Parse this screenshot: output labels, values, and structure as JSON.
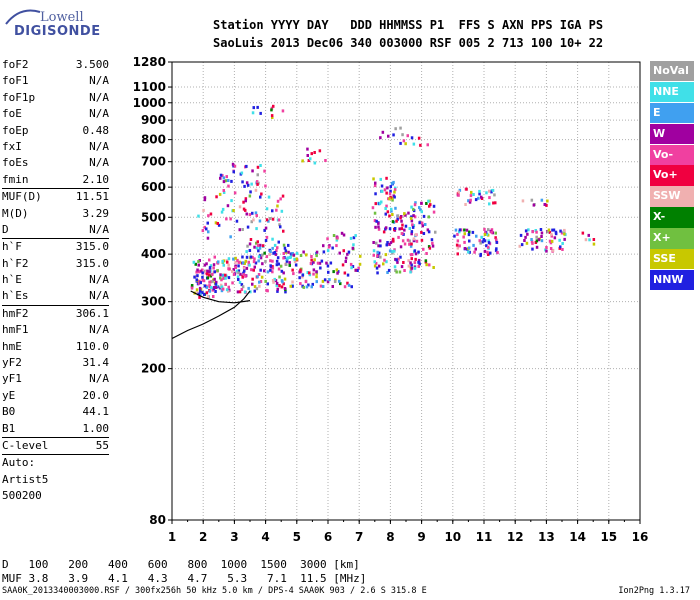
{
  "logo": {
    "line1": "Lowell",
    "line2": "DIGISONDE"
  },
  "header": {
    "row1": "Station YYYY DAY   DDD HHMMSS P1  FFS S AXN PPS IGA PS",
    "row2": "SaoLuis 2013 Dec06 340 003000 RSF 005 2 713 100 10+ 22"
  },
  "params": {
    "group1": [
      {
        "name": "foF2",
        "value": "3.500"
      },
      {
        "name": "foF1",
        "value": "N/A"
      },
      {
        "name": "foF1p",
        "value": "N/A"
      },
      {
        "name": "foE",
        "value": "N/A"
      },
      {
        "name": "foEp",
        "value": "0.48"
      },
      {
        "name": "fxI",
        "value": "N/A"
      },
      {
        "name": "foEs",
        "value": "N/A"
      },
      {
        "name": "fmin",
        "value": "2.10"
      }
    ],
    "group2": [
      {
        "name": "MUF(D)",
        "value": "11.51"
      },
      {
        "name": "M(D)",
        "value": "3.29"
      },
      {
        "name": "D",
        "value": "N/A"
      }
    ],
    "group3": [
      {
        "name": "h`F",
        "value": "315.0"
      },
      {
        "name": "h`F2",
        "value": "315.0"
      },
      {
        "name": "h`E",
        "value": "N/A"
      },
      {
        "name": "h`Es",
        "value": "N/A"
      }
    ],
    "group4": [
      {
        "name": "hmF2",
        "value": "306.1"
      },
      {
        "name": "hmF1",
        "value": "N/A"
      },
      {
        "name": "hmE",
        "value": "110.0"
      },
      {
        "name": "yF2",
        "value": "31.4"
      },
      {
        "name": "yF1",
        "value": "N/A"
      },
      {
        "name": "yE",
        "value": "20.0"
      },
      {
        "name": "B0",
        "value": "44.1"
      },
      {
        "name": "B1",
        "value": "1.00"
      }
    ],
    "group5": [
      {
        "name": "C-level",
        "value": "55"
      }
    ],
    "auto": [
      "Auto:",
      "Artist5",
      "500200"
    ]
  },
  "muf_table": {
    "d_label": "D",
    "d_values": [
      "100",
      "200",
      "400",
      "600",
      "800",
      "1000",
      "1500",
      "3000"
    ],
    "d_unit": "[km]",
    "m_label": "MUF",
    "m_values": [
      "3.8",
      "3.9",
      "4.1",
      "4.3",
      "4.7",
      "5.3",
      "7.1",
      "11.5"
    ],
    "m_unit": "[MHz]"
  },
  "footer": {
    "left": "SAA0K_2013340003000.RSF / 300fx256h 50 kHz 5.0 km / DPS-4 SAA0K 903 / 2.6 S 315.8 E",
    "right": "Ion2Png 1.3.17"
  },
  "legend": [
    {
      "label": "NoVal",
      "color": "#a0a0a0"
    },
    {
      "label": "NNE",
      "color": "#40e0e8"
    },
    {
      "label": "E",
      "color": "#40a0f0"
    },
    {
      "label": "W",
      "color": "#a000a0"
    },
    {
      "label": "Vo-",
      "color": "#f040a0"
    },
    {
      "label": "Vo+",
      "color": "#f00040"
    },
    {
      "label": "SSW",
      "color": "#f0b0b0"
    },
    {
      "label": "X-",
      "color": "#008000"
    },
    {
      "label": "X+",
      "color": "#70c040"
    },
    {
      "label": "SSE",
      "color": "#c8c800"
    },
    {
      "label": "NNW",
      "color": "#2020e0"
    }
  ],
  "chart_data": {
    "type": "scatter",
    "x_ticks": [
      1,
      2,
      3,
      4,
      5,
      6,
      7,
      8,
      9,
      10,
      11,
      12,
      13,
      14,
      15,
      16
    ],
    "xlim": [
      1,
      16
    ],
    "y_ticks": [
      80,
      200,
      300,
      400,
      500,
      600,
      700,
      800,
      900,
      1000,
      1100,
      1280
    ],
    "yscale": "log",
    "ylim": [
      80,
      1280
    ],
    "grid": true,
    "clusters": [
      {
        "x": [
          1.6,
          2.3
        ],
        "y": [
          310,
          390
        ],
        "density": 80
      },
      {
        "x": [
          2.3,
          3.3
        ],
        "y": [
          320,
          400
        ],
        "density": 90
      },
      {
        "x": [
          3.3,
          4.7
        ],
        "y": [
          320,
          440
        ],
        "density": 120
      },
      {
        "x": [
          1.8,
          4.6
        ],
        "y": [
          440,
          580
        ],
        "density": 70
      },
      {
        "x": [
          2.5,
          4.0
        ],
        "y": [
          580,
          700
        ],
        "density": 40
      },
      {
        "x": [
          4.6,
          5.8
        ],
        "y": [
          330,
          410
        ],
        "density": 70
      },
      {
        "x": [
          5.8,
          7.0
        ],
        "y": [
          330,
          460
        ],
        "density": 60
      },
      {
        "x": [
          7.4,
          8.8
        ],
        "y": [
          360,
          520
        ],
        "density": 120
      },
      {
        "x": [
          7.4,
          8.2
        ],
        "y": [
          520,
          640
        ],
        "density": 40
      },
      {
        "x": [
          8.6,
          9.4
        ],
        "y": [
          370,
          560
        ],
        "density": 60
      },
      {
        "x": [
          10.0,
          11.4
        ],
        "y": [
          400,
          470
        ],
        "density": 70
      },
      {
        "x": [
          10.0,
          11.4
        ],
        "y": [
          540,
          600
        ],
        "density": 30
      },
      {
        "x": [
          12.1,
          13.6
        ],
        "y": [
          410,
          470
        ],
        "density": 60
      },
      {
        "x": [
          12.1,
          13.0
        ],
        "y": [
          540,
          560
        ],
        "density": 8
      },
      {
        "x": [
          14.0,
          14.5
        ],
        "y": [
          420,
          460
        ],
        "density": 6
      },
      {
        "x": [
          3.4,
          4.6
        ],
        "y": [
          920,
          990
        ],
        "density": 10
      },
      {
        "x": [
          4.9,
          5.9
        ],
        "y": [
          700,
          770
        ],
        "density": 10
      },
      {
        "x": [
          7.6,
          9.4
        ],
        "y": [
          780,
          870
        ],
        "density": 16
      }
    ],
    "trace": [
      [
        1.0,
        240
      ],
      [
        1.5,
        252
      ],
      [
        2.0,
        262
      ],
      [
        2.5,
        275
      ],
      [
        3.0,
        290
      ],
      [
        3.3,
        305
      ],
      [
        3.5,
        320
      ]
    ],
    "trace2": [
      [
        1.6,
        320
      ],
      [
        2.0,
        308
      ],
      [
        2.5,
        300
      ],
      [
        3.0,
        298
      ],
      [
        3.5,
        302
      ]
    ]
  }
}
